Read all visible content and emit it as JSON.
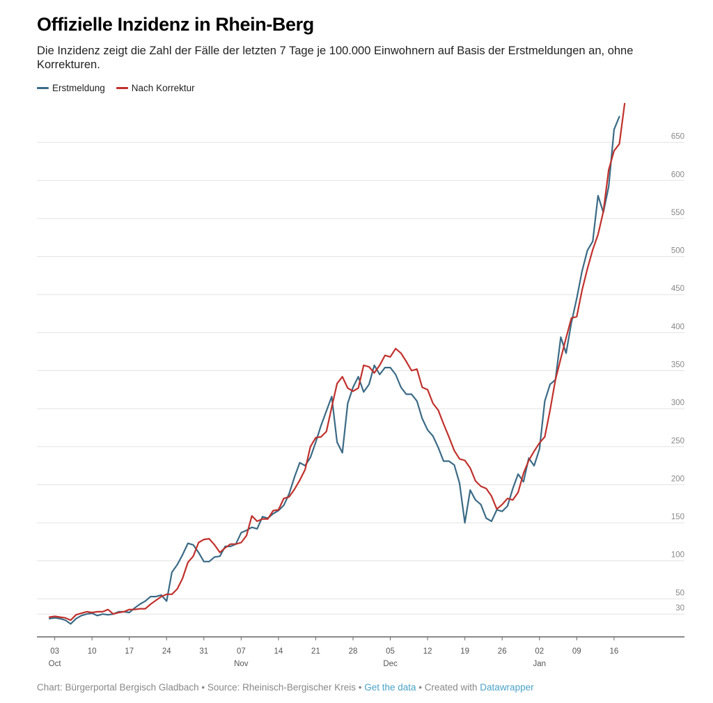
{
  "title": "Offizielle Inzidenz in Rhein-Berg",
  "subtitle": "Die Inzidenz zeigt die Zahl der Fälle der letzten 7 Tage je 100.000 Einwohnern auf Basis der Erstmeldungen an, ohne Korrekturen.",
  "legend": [
    {
      "label": "Erstmeldung",
      "color": "#3a6a85"
    },
    {
      "label": "Nach Korrektur",
      "color": "#c0302b"
    }
  ],
  "footer": {
    "chart_credit": "Chart: Bürgerportal Bergisch Gladbach",
    "separator": " • ",
    "source": "Source: Rheinisch-Bergischer Kreis",
    "get_data": "Get the data",
    "created_with": "Created with",
    "datawrapper": "Datawrapper"
  },
  "chart_data": {
    "type": "line",
    "title": "Offizielle Inzidenz in Rhein-Berg",
    "xlabel": "",
    "ylabel": "",
    "ylim": [
      0,
      700
    ],
    "y_ticks": [
      30,
      50,
      100,
      150,
      200,
      250,
      300,
      350,
      400,
      450,
      500,
      550,
      600,
      650
    ],
    "x_axis": {
      "type": "date",
      "start": "2020-10-01",
      "end": "2021-01-22",
      "ticks": [
        {
          "date": "2020-10-03",
          "day": "03",
          "month": "Oct"
        },
        {
          "date": "2020-10-10",
          "day": "10",
          "month": ""
        },
        {
          "date": "2020-10-17",
          "day": "17",
          "month": ""
        },
        {
          "date": "2020-10-24",
          "day": "24",
          "month": ""
        },
        {
          "date": "2020-10-31",
          "day": "31",
          "month": ""
        },
        {
          "date": "2020-11-07",
          "day": "07",
          "month": "Nov"
        },
        {
          "date": "2020-11-14",
          "day": "14",
          "month": ""
        },
        {
          "date": "2020-11-21",
          "day": "21",
          "month": ""
        },
        {
          "date": "2020-11-28",
          "day": "28",
          "month": ""
        },
        {
          "date": "2020-12-05",
          "day": "05",
          "month": "Dec"
        },
        {
          "date": "2020-12-12",
          "day": "12",
          "month": ""
        },
        {
          "date": "2020-12-19",
          "day": "19",
          "month": ""
        },
        {
          "date": "2020-12-26",
          "day": "26",
          "month": ""
        },
        {
          "date": "2021-01-02",
          "day": "02",
          "month": "Jan"
        },
        {
          "date": "2021-01-09",
          "day": "09",
          "month": ""
        },
        {
          "date": "2021-01-16",
          "day": "16",
          "month": ""
        }
      ]
    },
    "grid": true,
    "legend_position": "top-left",
    "series": [
      {
        "name": "Erstmeldung",
        "color": "#3a6a85",
        "points": [
          [
            "2020-10-02",
            24
          ],
          [
            "2020-10-03",
            25
          ],
          [
            "2020-10-04",
            24
          ],
          [
            "2020-10-05",
            22
          ],
          [
            "2020-10-06",
            17
          ],
          [
            "2020-10-07",
            24
          ],
          [
            "2020-10-08",
            28
          ],
          [
            "2020-10-09",
            30
          ],
          [
            "2020-10-10",
            31
          ],
          [
            "2020-10-11",
            28
          ],
          [
            "2020-10-12",
            30
          ],
          [
            "2020-10-13",
            29
          ],
          [
            "2020-10-14",
            30
          ],
          [
            "2020-10-15",
            33
          ],
          [
            "2020-10-16",
            33
          ],
          [
            "2020-10-17",
            32
          ],
          [
            "2020-10-18",
            38
          ],
          [
            "2020-10-19",
            43
          ],
          [
            "2020-10-20",
            47
          ],
          [
            "2020-10-21",
            53
          ],
          [
            "2020-10-22",
            53
          ],
          [
            "2020-10-23",
            55
          ],
          [
            "2020-10-24",
            47
          ],
          [
            "2020-10-25",
            85
          ],
          [
            "2020-10-26",
            95
          ],
          [
            "2020-10-27",
            108
          ],
          [
            "2020-10-28",
            123
          ],
          [
            "2020-10-29",
            121
          ],
          [
            "2020-10-30",
            111
          ],
          [
            "2020-10-31",
            99
          ],
          [
            "2020-11-01",
            99
          ],
          [
            "2020-11-02",
            105
          ],
          [
            "2020-11-03",
            106
          ],
          [
            "2020-11-04",
            119
          ],
          [
            "2020-11-05",
            119
          ],
          [
            "2020-11-06",
            122
          ],
          [
            "2020-11-07",
            137
          ],
          [
            "2020-11-08",
            140
          ],
          [
            "2020-11-09",
            144
          ],
          [
            "2020-11-10",
            142
          ],
          [
            "2020-11-11",
            158
          ],
          [
            "2020-11-12",
            156
          ],
          [
            "2020-11-13",
            162
          ],
          [
            "2020-11-14",
            166
          ],
          [
            "2020-11-15",
            173
          ],
          [
            "2020-11-16",
            188
          ],
          [
            "2020-11-17",
            210
          ],
          [
            "2020-11-18",
            229
          ],
          [
            "2020-11-19",
            225
          ],
          [
            "2020-11-20",
            236
          ],
          [
            "2020-11-21",
            256
          ],
          [
            "2020-11-22",
            278
          ],
          [
            "2020-11-23",
            297
          ],
          [
            "2020-11-24",
            316
          ],
          [
            "2020-11-25",
            256
          ],
          [
            "2020-11-26",
            242
          ],
          [
            "2020-11-27",
            307
          ],
          [
            "2020-11-28",
            328
          ],
          [
            "2020-11-29",
            342
          ],
          [
            "2020-11-30",
            322
          ],
          [
            "2020-12-01",
            332
          ],
          [
            "2020-12-02",
            357
          ],
          [
            "2020-12-03",
            345
          ],
          [
            "2020-12-04",
            354
          ],
          [
            "2020-12-05",
            354
          ],
          [
            "2020-12-06",
            345
          ],
          [
            "2020-12-07",
            328
          ],
          [
            "2020-12-08",
            319
          ],
          [
            "2020-12-09",
            319
          ],
          [
            "2020-12-10",
            310
          ],
          [
            "2020-12-11",
            287
          ],
          [
            "2020-12-12",
            272
          ],
          [
            "2020-12-13",
            264
          ],
          [
            "2020-12-14",
            249
          ],
          [
            "2020-12-15",
            231
          ],
          [
            "2020-12-16",
            231
          ],
          [
            "2020-12-17",
            226
          ],
          [
            "2020-12-18",
            202
          ],
          [
            "2020-12-19",
            150
          ],
          [
            "2020-12-20",
            193
          ],
          [
            "2020-12-21",
            180
          ],
          [
            "2020-12-22",
            174
          ],
          [
            "2020-12-23",
            156
          ],
          [
            "2020-12-24",
            152
          ],
          [
            "2020-12-25",
            167
          ],
          [
            "2020-12-26",
            165
          ],
          [
            "2020-12-27",
            172
          ],
          [
            "2020-12-28",
            195
          ],
          [
            "2020-12-29",
            214
          ],
          [
            "2020-12-30",
            204
          ],
          [
            "2020-12-31",
            235
          ],
          [
            "2021-01-01",
            225
          ],
          [
            "2021-01-02",
            247
          ],
          [
            "2021-01-03",
            310
          ],
          [
            "2021-01-04",
            332
          ],
          [
            "2021-01-05",
            338
          ],
          [
            "2021-01-06",
            394
          ],
          [
            "2021-01-07",
            373
          ],
          [
            "2021-01-08",
            413
          ],
          [
            "2021-01-09",
            445
          ],
          [
            "2021-01-10",
            481
          ],
          [
            "2021-01-11",
            508
          ],
          [
            "2021-01-12",
            520
          ],
          [
            "2021-01-13",
            580
          ],
          [
            "2021-01-14",
            558
          ],
          [
            "2021-01-15",
            592
          ],
          [
            "2021-01-16",
            667
          ],
          [
            "2021-01-17",
            684
          ]
        ]
      },
      {
        "name": "Nach Korrektur",
        "color": "#c0302b",
        "points": [
          [
            "2020-10-02",
            26
          ],
          [
            "2020-10-03",
            27
          ],
          [
            "2020-10-04",
            26
          ],
          [
            "2020-10-05",
            25
          ],
          [
            "2020-10-06",
            22
          ],
          [
            "2020-10-07",
            29
          ],
          [
            "2020-10-08",
            31
          ],
          [
            "2020-10-09",
            33
          ],
          [
            "2020-10-10",
            32
          ],
          [
            "2020-10-11",
            33
          ],
          [
            "2020-10-12",
            33
          ],
          [
            "2020-10-13",
            36
          ],
          [
            "2020-10-14",
            30
          ],
          [
            "2020-10-15",
            32
          ],
          [
            "2020-10-16",
            33
          ],
          [
            "2020-10-17",
            36
          ],
          [
            "2020-10-18",
            36
          ],
          [
            "2020-10-19",
            37
          ],
          [
            "2020-10-20",
            37
          ],
          [
            "2020-10-21",
            43
          ],
          [
            "2020-10-22",
            48
          ],
          [
            "2020-10-23",
            53
          ],
          [
            "2020-10-24",
            56
          ],
          [
            "2020-10-25",
            56
          ],
          [
            "2020-10-26",
            63
          ],
          [
            "2020-10-27",
            77
          ],
          [
            "2020-10-28",
            98
          ],
          [
            "2020-10-29",
            106
          ],
          [
            "2020-10-30",
            124
          ],
          [
            "2020-10-31",
            128
          ],
          [
            "2020-11-01",
            129
          ],
          [
            "2020-11-02",
            121
          ],
          [
            "2020-11-03",
            111
          ],
          [
            "2020-11-04",
            117
          ],
          [
            "2020-11-05",
            122
          ],
          [
            "2020-11-06",
            122
          ],
          [
            "2020-11-07",
            124
          ],
          [
            "2020-11-08",
            133
          ],
          [
            "2020-11-09",
            159
          ],
          [
            "2020-11-10",
            152
          ],
          [
            "2020-11-11",
            155
          ],
          [
            "2020-11-12",
            155
          ],
          [
            "2020-11-13",
            166
          ],
          [
            "2020-11-14",
            167
          ],
          [
            "2020-11-15",
            182
          ],
          [
            "2020-11-16",
            184
          ],
          [
            "2020-11-17",
            194
          ],
          [
            "2020-11-18",
            206
          ],
          [
            "2020-11-19",
            220
          ],
          [
            "2020-11-20",
            250
          ],
          [
            "2020-11-21",
            262
          ],
          [
            "2020-11-22",
            263
          ],
          [
            "2020-11-23",
            270
          ],
          [
            "2020-11-24",
            302
          ],
          [
            "2020-11-25",
            333
          ],
          [
            "2020-11-26",
            342
          ],
          [
            "2020-11-27",
            327
          ],
          [
            "2020-11-28",
            323
          ],
          [
            "2020-11-29",
            327
          ],
          [
            "2020-11-30",
            357
          ],
          [
            "2020-12-01",
            355
          ],
          [
            "2020-12-02",
            347
          ],
          [
            "2020-12-03",
            357
          ],
          [
            "2020-12-04",
            370
          ],
          [
            "2020-12-05",
            368
          ],
          [
            "2020-12-06",
            379
          ],
          [
            "2020-12-07",
            373
          ],
          [
            "2020-12-08",
            362
          ],
          [
            "2020-12-09",
            350
          ],
          [
            "2020-12-10",
            352
          ],
          [
            "2020-12-11",
            328
          ],
          [
            "2020-12-12",
            325
          ],
          [
            "2020-12-13",
            307
          ],
          [
            "2020-12-14",
            298
          ],
          [
            "2020-12-15",
            280
          ],
          [
            "2020-12-16",
            263
          ],
          [
            "2020-12-17",
            245
          ],
          [
            "2020-12-18",
            234
          ],
          [
            "2020-12-19",
            232
          ],
          [
            "2020-12-20",
            222
          ],
          [
            "2020-12-21",
            205
          ],
          [
            "2020-12-22",
            198
          ],
          [
            "2020-12-23",
            195
          ],
          [
            "2020-12-24",
            185
          ],
          [
            "2020-12-25",
            168
          ],
          [
            "2020-12-26",
            174
          ],
          [
            "2020-12-27",
            182
          ],
          [
            "2020-12-28",
            180
          ],
          [
            "2020-12-29",
            190
          ],
          [
            "2020-12-30",
            215
          ],
          [
            "2020-12-31",
            232
          ],
          [
            "2021-01-01",
            244
          ],
          [
            "2021-01-02",
            255
          ],
          [
            "2021-01-03",
            263
          ],
          [
            "2021-01-04",
            298
          ],
          [
            "2021-01-05",
            338
          ],
          [
            "2021-01-06",
            366
          ],
          [
            "2021-01-07",
            393
          ],
          [
            "2021-01-08",
            419
          ],
          [
            "2021-01-09",
            421
          ],
          [
            "2021-01-10",
            456
          ],
          [
            "2021-01-11",
            484
          ],
          [
            "2021-01-12",
            509
          ],
          [
            "2021-01-13",
            529
          ],
          [
            "2021-01-14",
            559
          ],
          [
            "2021-01-15",
            614
          ],
          [
            "2021-01-16",
            639
          ],
          [
            "2021-01-17",
            648
          ],
          [
            "2021-01-18",
            701
          ]
        ]
      }
    ]
  }
}
